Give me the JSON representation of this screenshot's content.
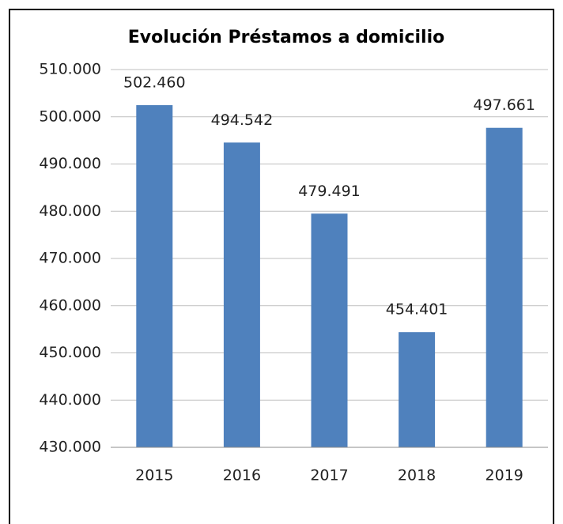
{
  "chart_data": {
    "type": "bar",
    "title": "Evolución Préstamos a domicilio",
    "categories": [
      "2015",
      "2016",
      "2017",
      "2018",
      "2019"
    ],
    "values": [
      502460,
      494542,
      479491,
      454401,
      497661
    ],
    "value_labels": [
      "502.460",
      "494.542",
      "479.491",
      "454.401",
      "497.661"
    ],
    "color": "#4f81bd",
    "ylim": [
      430000,
      510000
    ],
    "yticks": [
      {
        "value": 430000,
        "label": "430.000"
      },
      {
        "value": 440000,
        "label": "440.000"
      },
      {
        "value": 450000,
        "label": "450.000"
      },
      {
        "value": 460000,
        "label": "460.000"
      },
      {
        "value": 470000,
        "label": "470.000"
      },
      {
        "value": 480000,
        "label": "480.000"
      },
      {
        "value": 490000,
        "label": "490.000"
      },
      {
        "value": 500000,
        "label": "500.000"
      },
      {
        "value": 510000,
        "label": "510.000"
      }
    ],
    "grid": true
  }
}
